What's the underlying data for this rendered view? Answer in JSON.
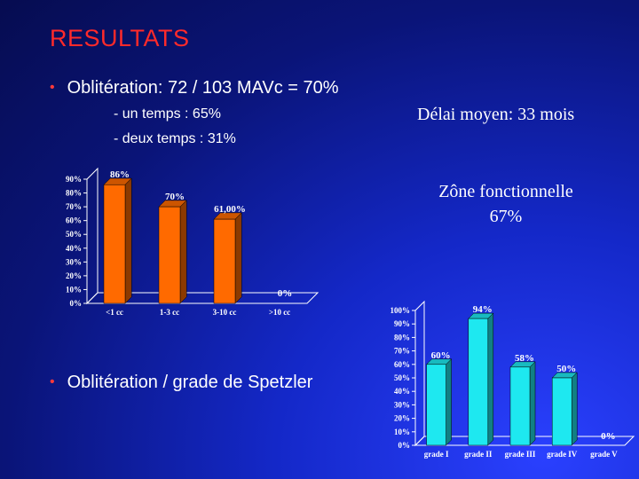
{
  "title": "RESULTATS",
  "bullet1": {
    "text": "Oblitération: 72 / 103 MAVc = 70%",
    "sub1": "- un temps : 65%",
    "sub2": "- deux temps : 31%"
  },
  "delai": "Délai moyen: 33 mois",
  "zone": {
    "line1": "Zône fonctionnelle",
    "line2": "67%"
  },
  "bullet2": {
    "text": "Oblitération /  grade de Spetzler"
  },
  "colors": {
    "bar1": "#ff6a00",
    "bar2": "#1ee8f0",
    "title": "#ff2a2a",
    "background": "#0a1478"
  },
  "chart_data": [
    {
      "type": "bar",
      "categories": [
        "<1 cc",
        "1-3 cc",
        "3-10 cc",
        ">10 cc"
      ],
      "values": [
        86,
        70,
        61,
        0
      ],
      "data_labels": [
        "86%",
        "70%",
        "61,00%",
        "0%"
      ],
      "y_ticks": [
        "0%",
        "10%",
        "20%",
        "30%",
        "40%",
        "50%",
        "60%",
        "70%",
        "80%",
        "90%"
      ],
      "ylim": [
        0,
        90
      ],
      "grid": false,
      "style": "3d",
      "color": "#ff6a00"
    },
    {
      "type": "bar",
      "categories": [
        "grade I",
        "grade II",
        "grade III",
        "grade IV",
        "grade V"
      ],
      "values": [
        60,
        94,
        58,
        50,
        0
      ],
      "data_labels": [
        "60%",
        "94%",
        "58%",
        "50%",
        "0%"
      ],
      "y_ticks": [
        "0%",
        "10%",
        "20%",
        "30%",
        "40%",
        "50%",
        "60%",
        "70%",
        "80%",
        "90%",
        "100%"
      ],
      "ylim": [
        0,
        100
      ],
      "grid": false,
      "style": "3d",
      "color": "#1ee8f0"
    }
  ]
}
